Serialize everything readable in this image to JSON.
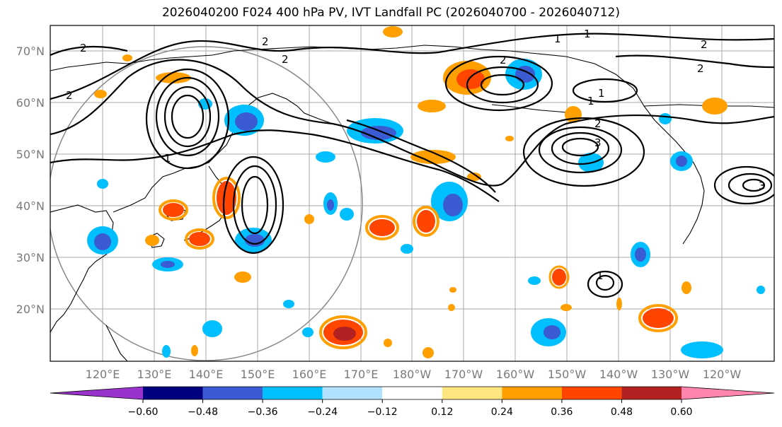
{
  "title": "2026040200 F024 400 hPa PV, IVT Landfall PC (2026040700 - 2026040712)",
  "latitude_labels": [
    "70°N",
    "60°N",
    "50°N",
    "40°N",
    "30°N",
    "20°N"
  ],
  "longitude_labels": [
    "120°E",
    "130°E",
    "140°E",
    "150°E",
    "160°E",
    "170°E",
    "180°W",
    "170°W",
    "160°W",
    "150°W",
    "140°W",
    "130°W",
    "120°W"
  ],
  "contour_labels": [
    "2",
    "2",
    "2",
    "2",
    "1",
    "1",
    "2",
    "2",
    "1",
    "2",
    "2",
    "1",
    "1",
    "3",
    "3",
    "1"
  ],
  "colorbar": {
    "colors": [
      "#9933cc",
      "#000080",
      "#3a5bd1",
      "#00bfff",
      "#b0e2ff",
      "#ffffff",
      "#ffe680",
      "#ffa000",
      "#ff4500",
      "#b22222",
      "#ff85b0"
    ],
    "tick_labels": [
      "−0.60",
      "−0.48",
      "−0.36",
      "−0.24",
      "−0.12",
      "0.12",
      "0.24",
      "0.36",
      "0.48",
      "0.60"
    ]
  }
}
